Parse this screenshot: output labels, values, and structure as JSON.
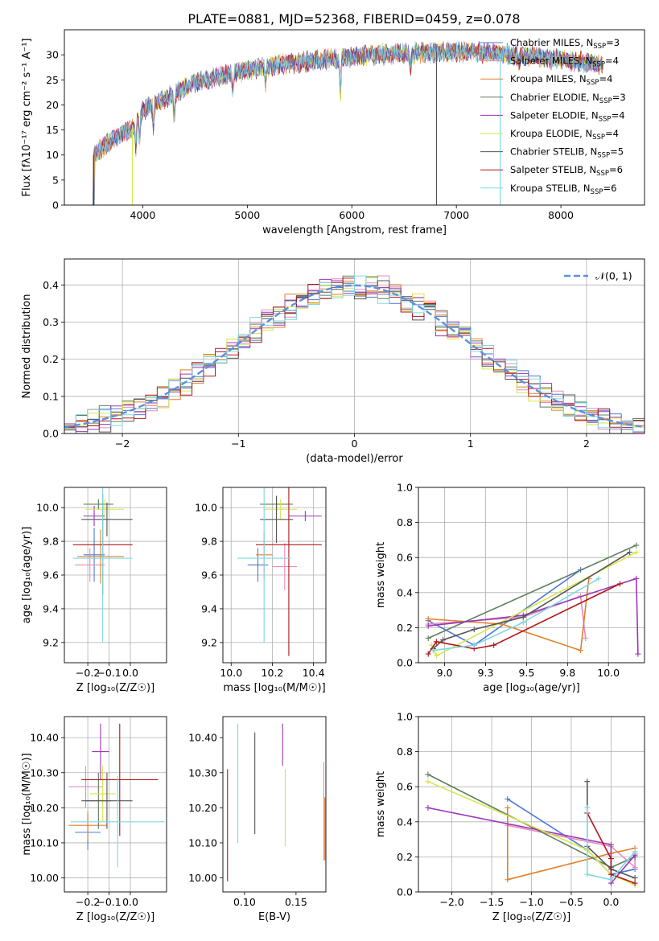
{
  "figure_title": "PLATE=0881, MJD=52368, FIBERID=0459, z=0.078",
  "models": [
    {
      "name": "Chabrier MILES",
      "nssp": "3",
      "color": "#4c78d6"
    },
    {
      "name": "Salpeter MILES",
      "nssp": "4",
      "color": "#e58cc0"
    },
    {
      "name": "Kroupa MILES",
      "nssp": "4",
      "color": "#e0802a"
    },
    {
      "name": "Chabrier ELODIE",
      "nssp": "3",
      "color": "#5f7f5f"
    },
    {
      "name": "Salpeter ELODIE",
      "nssp": "4",
      "color": "#9b36b8"
    },
    {
      "name": "Kroupa ELODIE",
      "nssp": "4",
      "color": "#d6e64a"
    },
    {
      "name": "Chabrier STELIB",
      "nssp": "5",
      "color": "#555555"
    },
    {
      "name": "Salpeter STELIB",
      "nssp": "6",
      "color": "#b0161c"
    },
    {
      "name": "Kroupa STELIB",
      "nssp": "6",
      "color": "#7fd8e3"
    }
  ],
  "legend_nssp_label": "N",
  "legend_nssp_sub": "SSP",
  "chart_data": [
    {
      "id": "spectrum",
      "type": "line",
      "xlabel": "wavelength [Angstrom, rest frame]",
      "ylabel": "Flux [fλ10⁻¹⁷ erg cm⁻² s⁻¹ A⁻¹]",
      "xlim": [
        3250,
        8800
      ],
      "ylim": [
        0,
        35
      ],
      "xticks": [
        4000,
        5000,
        6000,
        7000,
        8000
      ],
      "yticks": [
        0,
        5,
        10,
        15,
        20,
        25,
        30
      ],
      "grid": false,
      "legend_position": "right",
      "wavelength_range": [
        3530,
        8400
      ],
      "continuum": [
        [
          3530,
          10
        ],
        [
          3700,
          13
        ],
        [
          3900,
          15.5
        ],
        [
          4000,
          19
        ],
        [
          4200,
          21
        ],
        [
          4500,
          24.5
        ],
        [
          4900,
          26.5
        ],
        [
          5300,
          28
        ],
        [
          5700,
          29
        ],
        [
          6200,
          30
        ],
        [
          6700,
          30.5
        ],
        [
          7200,
          30.5
        ],
        [
          7600,
          30
        ],
        [
          8000,
          29
        ],
        [
          8400,
          28
        ]
      ]
    },
    {
      "id": "residuals",
      "type": "bar",
      "xlabel": "(data-model)/error",
      "ylabel": "Normed distribution",
      "xlim": [
        -2.5,
        2.5
      ],
      "ylim": [
        0,
        0.47
      ],
      "xticks": [
        -2,
        -1,
        0,
        1,
        2
      ],
      "yticks": [
        0.0,
        0.1,
        0.2,
        0.3,
        0.4
      ],
      "grid": true,
      "legend_position": "top-right",
      "reference_label": "𝒩(0, 1)",
      "bin_width": 0.1,
      "bin_start": -2.5
    },
    {
      "id": "age-vs-Z",
      "type": "scatter",
      "xlabel": "Z [log₁₀(Z/Z☉)]",
      "ylabel": "age  [log₁₀(age/yr)]",
      "xlim": [
        -0.31,
        0.17
      ],
      "ylim": [
        9.08,
        10.12
      ],
      "xticks": [
        -0.2,
        -0.1,
        0.0
      ],
      "yticks": [
        9.2,
        9.4,
        9.6,
        9.8,
        10.0
      ],
      "grid": true,
      "points": [
        {
          "x": -0.17,
          "y": 9.72,
          "xerr": 0.05,
          "yerr": 0.16
        },
        {
          "x": -0.19,
          "y": 9.66,
          "xerr": 0.07,
          "yerr": 0.1
        },
        {
          "x": -0.14,
          "y": 9.71,
          "xerr": 0.11,
          "yerr": 0.16
        },
        {
          "x": -0.15,
          "y": 10.02,
          "xerr": 0.07,
          "yerr": 0.03
        },
        {
          "x": -0.17,
          "y": 9.95,
          "xerr": 0.05,
          "yerr": 0.06
        },
        {
          "x": -0.12,
          "y": 9.99,
          "xerr": 0.09,
          "yerr": 0.06
        },
        {
          "x": -0.11,
          "y": 9.93,
          "xerr": 0.12,
          "yerr": 0.1
        },
        {
          "x": -0.13,
          "y": 9.78,
          "xerr": 0.14,
          "yerr": 0.3
        },
        {
          "x": -0.13,
          "y": 9.7,
          "xerr": 0.14,
          "yerr": 0.5
        }
      ]
    },
    {
      "id": "age-vs-mass",
      "type": "scatter",
      "xlabel": "mass [log₁₀(M/M☉)]",
      "ylabel": "",
      "xlim": [
        9.96,
        10.46
      ],
      "ylim": [
        9.08,
        10.12
      ],
      "xticks": [
        10.0,
        10.2,
        10.4
      ],
      "yticks": [
        9.2,
        9.4,
        9.6,
        9.8,
        10.0
      ],
      "grid": true,
      "points": [
        {
          "x": 10.13,
          "y": 9.66,
          "xerr": 0.05,
          "yerr": 0.1
        },
        {
          "x": 10.26,
          "y": 9.65,
          "xerr": 0.06,
          "yerr": 0.14
        },
        {
          "x": 10.16,
          "y": 9.72,
          "xerr": 0.04,
          "yerr": 0.14
        },
        {
          "x": 10.22,
          "y": 10.02,
          "xerr": 0.08,
          "yerr": 0.05
        },
        {
          "x": 10.36,
          "y": 9.95,
          "xerr": 0.08,
          "yerr": 0.03
        },
        {
          "x": 10.24,
          "y": 9.99,
          "xerr": 0.08,
          "yerr": 0.06
        },
        {
          "x": 10.22,
          "y": 9.93,
          "xerr": 0.08,
          "yerr": 0.14
        },
        {
          "x": 10.28,
          "y": 9.78,
          "xerr": 0.16,
          "yerr": 0.66
        },
        {
          "x": 10.16,
          "y": 9.7,
          "xerr": 0.13,
          "yerr": 0.5
        }
      ]
    },
    {
      "id": "weight-vs-age",
      "type": "line",
      "xlabel": "age  [log₁₀(age/yr)]",
      "ylabel": "mass weight",
      "xlim": [
        8.84,
        10.22
      ],
      "ylim": [
        0,
        1
      ],
      "xticks": [
        9.0,
        9.25,
        9.5,
        9.75,
        10.0
      ],
      "yticks": [
        0.0,
        0.2,
        0.4,
        0.6,
        0.8,
        1.0
      ],
      "grid": true,
      "series": [
        {
          "x": [
            8.9,
            9.18,
            9.83
          ],
          "y": [
            0.24,
            0.1,
            0.53
          ]
        },
        {
          "x": [
            8.9,
            9.48,
            9.83,
            9.86
          ],
          "y": [
            0.22,
            0.26,
            0.38,
            0.14
          ]
        },
        {
          "x": [
            8.9,
            9.35,
            9.83,
            9.88
          ],
          "y": [
            0.25,
            0.22,
            0.07,
            0.48
          ]
        },
        {
          "x": [
            8.9,
            10.17
          ],
          "y": [
            0.14,
            0.67
          ]
        },
        {
          "x": [
            8.9,
            9.48,
            10.17,
            10.18
          ],
          "y": [
            0.21,
            0.27,
            0.48,
            0.05
          ]
        },
        {
          "x": [
            8.92,
            8.95,
            10.17
          ],
          "y": [
            0.1,
            0.04,
            0.63
          ]
        },
        {
          "x": [
            8.93,
            8.99,
            9.18,
            9.48,
            10.13
          ],
          "y": [
            0.08,
            0.13,
            0.19,
            0.26,
            0.63
          ]
        },
        {
          "x": [
            8.9,
            8.95,
            9.18,
            9.3,
            10.07
          ],
          "y": [
            0.05,
            0.12,
            0.08,
            0.1,
            0.45
          ]
        },
        {
          "x": [
            8.93,
            9.18,
            9.48,
            9.94
          ],
          "y": [
            0.07,
            0.1,
            0.23,
            0.48
          ]
        }
      ]
    },
    {
      "id": "mass-vs-Z",
      "type": "scatter",
      "xlabel": "Z [log₁₀(Z/Z☉)]",
      "ylabel": "mass [log₁₀(M/M☉)]",
      "xlim": [
        -0.31,
        0.17
      ],
      "ylim": [
        9.96,
        10.46
      ],
      "xticks": [
        -0.2,
        -0.1,
        0.0
      ],
      "yticks": [
        10.0,
        10.1,
        10.2,
        10.3,
        10.4
      ],
      "grid": true,
      "points": [
        {
          "x": -0.2,
          "y": 10.13,
          "xerr": 0.06,
          "yerr": 0.05
        },
        {
          "x": -0.21,
          "y": 10.26,
          "xerr": 0.08,
          "yerr": 0.06
        },
        {
          "x": -0.2,
          "y": 10.15,
          "xerr": 0.09,
          "yerr": 0.04
        },
        {
          "x": -0.15,
          "y": 10.22,
          "xerr": 0.06,
          "yerr": 0.08
        },
        {
          "x": -0.14,
          "y": 10.36,
          "xerr": 0.04,
          "yerr": 0.08
        },
        {
          "x": -0.13,
          "y": 10.24,
          "xerr": 0.06,
          "yerr": 0.08
        },
        {
          "x": -0.11,
          "y": 10.22,
          "xerr": 0.12,
          "yerr": 0.08
        },
        {
          "x": -0.05,
          "y": 10.28,
          "xerr": 0.18,
          "yerr": 0.16
        },
        {
          "x": -0.06,
          "y": 10.16,
          "xerr": 0.22,
          "yerr": 0.13
        }
      ]
    },
    {
      "id": "mass-vs-ebv",
      "type": "scatter",
      "xlabel": "E(B-V)",
      "ylabel": "",
      "xlim": [
        0.079,
        0.179
      ],
      "ylim": [
        9.96,
        10.46
      ],
      "xticks": [
        0.1,
        0.15
      ],
      "yticks": [
        10.0,
        10.1,
        10.2,
        10.3,
        10.4
      ],
      "grid": false,
      "points": [
        {
          "x": 0.0835,
          "y": 10.15,
          "xerr": 0,
          "yerr": 0.16
        },
        {
          "x": 0.0935,
          "y": 10.27,
          "xerr": 0,
          "yerr": 0.17
        },
        {
          "x": 0.11,
          "y": 10.27,
          "xerr": 0,
          "yerr": 0.145
        },
        {
          "x": 0.137,
          "y": 10.38,
          "xerr": 0,
          "yerr": 0.06
        },
        {
          "x": 0.1395,
          "y": 10.2,
          "xerr": 0,
          "yerr": 0.11
        },
        {
          "x": 0.177,
          "y": 10.19,
          "xerr": 0,
          "yerr": 0.14
        },
        {
          "x": 0.178,
          "y": 10.14,
          "xerr": 0,
          "yerr": 0.09
        }
      ],
      "point_colors": [
        7,
        8,
        6,
        4,
        5,
        1,
        2
      ]
    },
    {
      "id": "weight-vs-Z",
      "type": "line",
      "xlabel": "Z [log₁₀(Z/Z☉)]",
      "ylabel": "mass weight",
      "xlim": [
        -2.42,
        0.42
      ],
      "ylim": [
        0,
        1
      ],
      "xticks": [
        -2.0,
        -1.5,
        -1.0,
        -0.5,
        0.0
      ],
      "yticks": [
        0.0,
        0.2,
        0.4,
        0.6,
        0.8,
        1.0
      ],
      "grid": true,
      "series": [
        {
          "x": [
            -1.3,
            -0.3,
            0.0,
            0.3
          ],
          "y": [
            0.53,
            0.24,
            0.1,
            0.13
          ]
        },
        {
          "x": [
            -1.3,
            0.0,
            0.3,
            0.3
          ],
          "y": [
            0.38,
            0.26,
            0.14,
            0.22
          ]
        },
        {
          "x": [
            -1.3,
            -1.3,
            0.0,
            0.3
          ],
          "y": [
            0.48,
            0.07,
            0.22,
            0.25
          ]
        },
        {
          "x": [
            -2.3,
            0.0,
            0.3
          ],
          "y": [
            0.67,
            0.14,
            0.2
          ]
        },
        {
          "x": [
            -2.3,
            0.0,
            0.0,
            0.3
          ],
          "y": [
            0.48,
            0.27,
            0.05,
            0.21
          ]
        },
        {
          "x": [
            -2.3,
            -0.3,
            0.0,
            0.3
          ],
          "y": [
            0.63,
            0.24,
            0.1,
            0.04
          ]
        },
        {
          "x": [
            -0.3,
            -0.3,
            0.0,
            0.3
          ],
          "y": [
            0.63,
            0.26,
            0.13,
            0.08
          ]
        },
        {
          "x": [
            -0.3,
            0.0,
            0.0,
            0.3
          ],
          "y": [
            0.45,
            0.19,
            0.1,
            0.05
          ]
        },
        {
          "x": [
            -0.3,
            -0.3,
            0.0,
            0.3
          ],
          "y": [
            0.48,
            0.1,
            0.07,
            0.23
          ]
        }
      ]
    }
  ]
}
